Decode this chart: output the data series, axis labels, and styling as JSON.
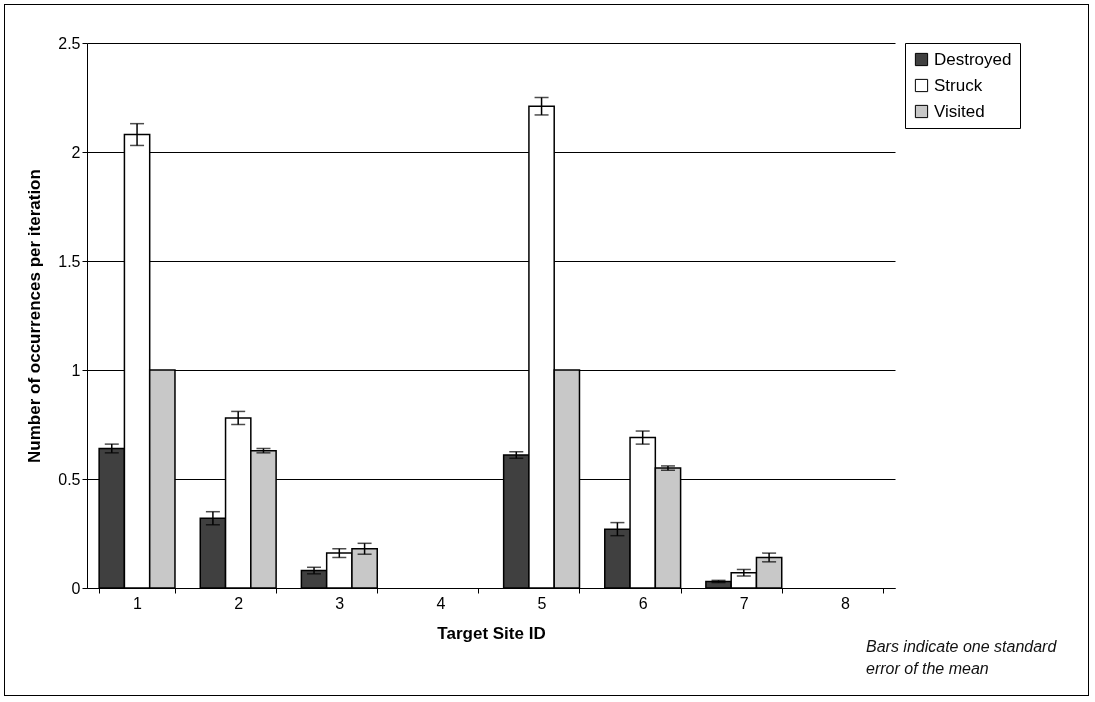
{
  "chart_data": {
    "type": "bar",
    "xlabel": "Target Site ID",
    "ylabel": "Number of occurrences per iteration",
    "categories": [
      "1",
      "2",
      "3",
      "4",
      "5",
      "6",
      "7",
      "8"
    ],
    "series": [
      {
        "name": "Destroyed",
        "color": "#404040",
        "values": [
          0.64,
          0.32,
          0.08,
          null,
          0.61,
          0.27,
          0.03,
          null
        ],
        "errors": [
          0.02,
          0.03,
          0.015,
          null,
          0.015,
          0.03,
          0.005,
          null
        ]
      },
      {
        "name": "Struck",
        "color": "#ffffff",
        "values": [
          2.08,
          0.78,
          0.16,
          null,
          2.21,
          0.69,
          0.07,
          null
        ],
        "errors": [
          0.05,
          0.03,
          0.02,
          null,
          0.04,
          0.03,
          0.015,
          null
        ]
      },
      {
        "name": "Visited",
        "color": "#c8c8c8",
        "values": [
          1,
          0.63,
          0.18,
          null,
          1,
          0.55,
          0.14,
          null
        ],
        "errors": [
          null,
          0.01,
          0.025,
          null,
          null,
          0.01,
          0.02,
          null
        ]
      }
    ],
    "ylim": [
      0,
      2.5
    ],
    "yticks": [
      0,
      0.5,
      1,
      1.5,
      2,
      2.5
    ],
    "grid": "y",
    "legend": "right",
    "annotations": [
      "Bars indicate one standard error of the mean"
    ]
  }
}
